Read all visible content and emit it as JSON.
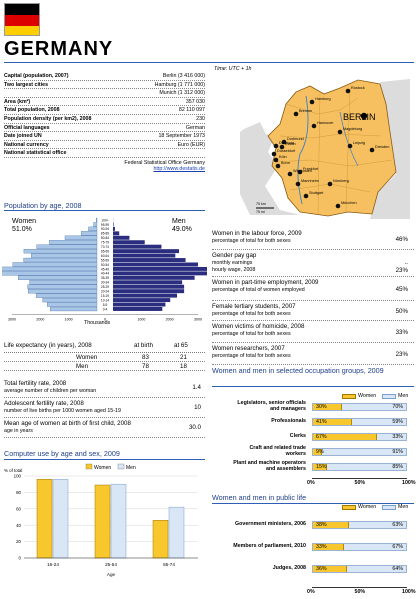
{
  "header": {
    "country": "GERMANY",
    "time": "Time: UTC + 1h"
  },
  "facts": [
    {
      "label": "Capital (population, 2007)",
      "value": "Berlin (3 416 000)"
    },
    {
      "label": "Two largest cities",
      "value": "Hamburg (1 771 000)"
    },
    {
      "label": "",
      "value": "Munich (1 312 000)"
    },
    {
      "label": "Area (km²)",
      "value": "357 030"
    },
    {
      "label": "Total population, 2008",
      "value": "82 110 097"
    },
    {
      "label": "Population density (per km2), 2008",
      "value": "230"
    },
    {
      "label": "Official languages",
      "value": "German"
    },
    {
      "label": "Date joined UN",
      "value": "18 September 1973"
    },
    {
      "label": "National currency",
      "value": "Euro (EUR)"
    },
    {
      "label": "National statistical office",
      "value": ""
    }
  ],
  "stat_office": {
    "name": "Federal Statistical Office Germany",
    "url": "http://www.destatis.de"
  },
  "map": {
    "capital": "BERLIN",
    "cities": [
      "Rostock",
      "Hamburg",
      "Bremen",
      "Hannover",
      "Magdeburg",
      "Dortmund",
      "Duisburg",
      "Essen",
      "Düsseldorf",
      "Leipzig",
      "Köln",
      "Bonn",
      "Dresden",
      "Wiesbaden",
      "Frankfurt",
      "Mannheim",
      "Nürnberg",
      "Stuttgart",
      "München"
    ],
    "scale": "75 km",
    "scale2": "75 mi"
  },
  "pyramid": {
    "title": "Population by age, 2008",
    "women_label": "Women",
    "women_pct": "51.0%",
    "men_label": "Men",
    "men_pct": "49.0%",
    "axis_title": "Thousands",
    "chart_data": {
      "type": "bar",
      "orientation": "population-pyramid",
      "xlabel": "Thousands",
      "age_groups": [
        "0-4",
        "5-9",
        "10-14",
        "15-19",
        "20-24",
        "25-29",
        "30-34",
        "35-39",
        "40-44",
        "45-49",
        "50-54",
        "55-59",
        "60-64",
        "65-69",
        "70-74",
        "75-79",
        "80-84",
        "85-89",
        "90-94",
        "95-99",
        "100+"
      ],
      "series": [
        {
          "name": "Women",
          "values": [
            1650,
            1760,
            1920,
            2150,
            2430,
            2450,
            2380,
            2780,
            3360,
            3410,
            2970,
            2590,
            2320,
            2580,
            2130,
            1680,
            1130,
            560,
            300,
            120,
            30
          ]
        },
        {
          "name": "Men",
          "values": [
            1740,
            1850,
            2020,
            2260,
            2510,
            2510,
            2440,
            2880,
            3500,
            3520,
            3000,
            2560,
            2200,
            2330,
            1710,
            1120,
            580,
            220,
            70,
            20,
            5
          ]
        }
      ],
      "xticks": [
        "3000",
        "2000",
        "1000",
        "0",
        "1000",
        "2000",
        "3000"
      ],
      "xlim": [
        -3000,
        3000
      ]
    }
  },
  "side_stats": [
    {
      "label": "Women in the labour force, 2009",
      "sub": "percentage of total for both sexes",
      "value": "46%"
    },
    {
      "label": "Gender pay gap",
      "sub": "monthly earnings",
      "sub2": "hourly wage, 2008",
      "value": "..",
      "value2": "23%"
    },
    {
      "label": "Women in part-time employment, 2009",
      "sub": "percentage of total of women employed",
      "value": "45%"
    },
    {
      "label": "Female tertiary students, 2007",
      "sub": "percentage of total for both sexes",
      "value": "50%"
    },
    {
      "label": "Women victims of homicide, 2008",
      "sub": "percentage of total for both sexes",
      "value": "33%"
    },
    {
      "label": "Women researchers, 2007",
      "sub": "percentage of total for both sexes",
      "value": "23%"
    }
  ],
  "life": {
    "label": "Life expectancy (in years), 2008",
    "col1": "at birth",
    "col2": "at 65",
    "rows": [
      {
        "label": "Women",
        "v1": "83",
        "v2": "21"
      },
      {
        "label": "Men",
        "v1": "78",
        "v2": "18"
      }
    ]
  },
  "fertility": [
    {
      "label": "Total fertility rate, 2008",
      "sub": "average number of children per woman",
      "value": "1.4"
    },
    {
      "label": "Adolescent fertility rate, 2008",
      "sub": "number of live births per 1000 women aged 15-19",
      "value": "10"
    },
    {
      "label": "Mean age of women at birth of first child, 2008",
      "sub": "age in years",
      "value": "30.0"
    }
  ],
  "comp": {
    "title": "Computer use by age and sex, 2009",
    "ylabel": "% of total",
    "xlabel": "Age",
    "legend": [
      "Women",
      "Men"
    ],
    "chart_data": {
      "type": "bar",
      "categories": [
        "16-24",
        "25-54",
        "55-74"
      ],
      "series": [
        {
          "name": "Women",
          "values": [
            96,
            89,
            46
          ]
        },
        {
          "name": "Men",
          "values": [
            96,
            90,
            62
          ]
        }
      ],
      "ylim": [
        0,
        100
      ],
      "yticks": [
        "0",
        "20",
        "40",
        "60",
        "80",
        "100"
      ],
      "ylabel": "% of total",
      "xlabel": "Age"
    }
  },
  "occupation": {
    "title": "Women and men in selected occupation groups, 2009",
    "legend": [
      "Women",
      "Men"
    ],
    "xticks": [
      "0%",
      "50%",
      "100%"
    ],
    "chart_data": {
      "type": "bar",
      "stacked": true,
      "categories": [
        "Legislators, senior officials and managers",
        "Professionals",
        "Clerks",
        "Craft and related trade workers",
        "Plant and machine operators and assemblers"
      ],
      "series": [
        {
          "name": "Women",
          "values": [
            30,
            41,
            67,
            9,
            15
          ]
        },
        {
          "name": "Men",
          "values": [
            70,
            59,
            33,
            91,
            85
          ]
        }
      ],
      "xlim": [
        0,
        100
      ]
    },
    "labels": [
      [
        "Legislators, senior officials",
        "and managers"
      ],
      [
        "Professionals"
      ],
      [
        "Clerks"
      ],
      [
        "Craft and related trade",
        "workers"
      ],
      [
        "Plant and machine operators",
        "and assemblers"
      ]
    ]
  },
  "public": {
    "title": "Women and men in public life",
    "legend": [
      "Women",
      "Men"
    ],
    "xticks": [
      "0%",
      "50%",
      "100%"
    ],
    "chart_data": {
      "type": "bar",
      "stacked": true,
      "categories": [
        "Government ministers, 2006",
        "Members of parliament, 2010",
        "Judges, 2008"
      ],
      "series": [
        {
          "name": "Women",
          "values": [
            38,
            33,
            36
          ]
        },
        {
          "name": "Men",
          "values": [
            63,
            67,
            64
          ]
        }
      ],
      "xlim": [
        0,
        100
      ]
    }
  },
  "colors": {
    "women_pyramid": "#a9c6e7",
    "men_pyramid": "#2b2e7e",
    "women": "#f7c72d",
    "men": "#d9e6f5",
    "rule": "#2d5fb4",
    "map_land": "#f6c061"
  }
}
